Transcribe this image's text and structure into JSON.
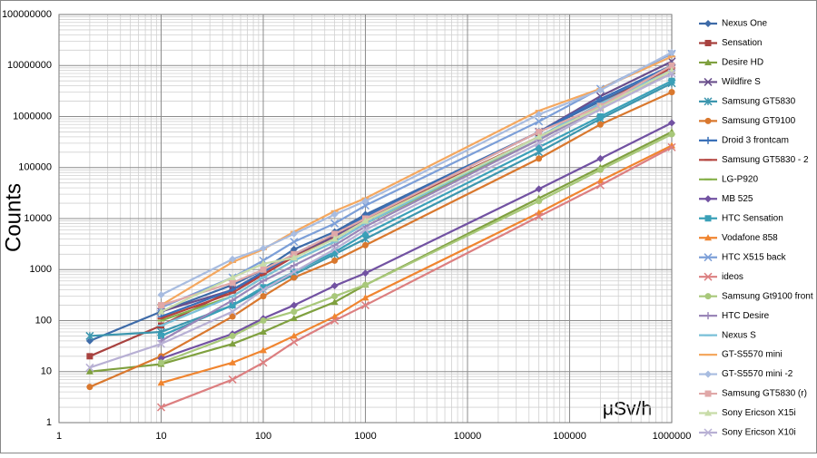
{
  "chart_data": {
    "type": "line",
    "y_label": "Counts",
    "annotation": "μSv/h",
    "x_scale": "log",
    "y_scale": "log",
    "grid": true,
    "legend": "right",
    "xlim": [
      1,
      1000000
    ],
    "ylim": [
      1,
      100000000
    ],
    "xticks": [
      1,
      10,
      100,
      1000,
      10000,
      100000,
      1000000
    ],
    "yticks": [
      1,
      10,
      100,
      1000,
      10000,
      100000,
      1000000,
      10000000,
      100000000
    ],
    "x": [
      2,
      10,
      50,
      100,
      200,
      500,
      1000,
      50000,
      200000,
      1000000
    ],
    "series": [
      {
        "name": "Nexus One",
        "color": "#3E6BA8",
        "marker": "diamond",
        "values": [
          40,
          150,
          500,
          1000,
          2500,
          5500,
          12000,
          500000,
          2000000,
          9000000
        ]
      },
      {
        "name": "Sensation",
        "color": "#A8423F",
        "marker": "square",
        "values": [
          20,
          80,
          400,
          900,
          2000,
          4500,
          10000,
          400000,
          1500000,
          8000000
        ]
      },
      {
        "name": "Desire HD",
        "color": "#7FA03F",
        "marker": "triangle",
        "values": [
          10,
          14,
          35,
          60,
          110,
          230,
          500,
          25000,
          100000,
          500000
        ]
      },
      {
        "name": "Wildfire S",
        "color": "#6A4F8C",
        "marker": "x",
        "values": [
          null,
          150,
          400,
          800,
          1800,
          4500,
          10000,
          500000,
          2500000,
          12000000
        ]
      },
      {
        "name": "Samsung GT5830",
        "color": "#3C96AE",
        "marker": "star",
        "values": [
          50,
          60,
          200,
          400,
          800,
          2000,
          4000,
          200000,
          900000,
          4500000
        ]
      },
      {
        "name": "Samsung GT9100",
        "color": "#D9782E",
        "marker": "circle",
        "values": [
          5,
          20,
          120,
          300,
          700,
          1500,
          3000,
          150000,
          700000,
          3000000
        ]
      },
      {
        "name": "Droid 3 frontcam",
        "color": "#3A70B8",
        "marker": "plus",
        "values": [
          null,
          120,
          400,
          900,
          2000,
          5000,
          11000,
          500000,
          2200000,
          10000000
        ]
      },
      {
        "name": "Samsung GT5830 - 2",
        "color": "#B4443F",
        "marker": "dash",
        "values": [
          null,
          110,
          350,
          800,
          1800,
          4000,
          9000,
          400000,
          1800000,
          9000000
        ]
      },
      {
        "name": "LG-P920",
        "color": "#86B04A",
        "marker": "dash",
        "values": [
          null,
          100,
          300,
          700,
          1500,
          3500,
          8000,
          350000,
          1500000,
          7000000
        ]
      },
      {
        "name": "MB 525",
        "color": "#7252A2",
        "marker": "diamond",
        "values": [
          null,
          18,
          55,
          110,
          200,
          480,
          850,
          38000,
          150000,
          750000
        ]
      },
      {
        "name": "HTC Sensation",
        "color": "#3AA0B8",
        "marker": "square",
        "values": [
          null,
          50,
          200,
          450,
          900,
          2200,
          5000,
          250000,
          1000000,
          5000000
        ]
      },
      {
        "name": "Vodafone 858",
        "color": "#F08530",
        "marker": "triangle",
        "values": [
          null,
          6,
          15,
          26,
          50,
          120,
          280,
          13000,
          55000,
          270000
        ]
      },
      {
        "name": "HTC X515 back",
        "color": "#7C9FD8",
        "marker": "x",
        "values": [
          null,
          180,
          700,
          1500,
          3500,
          8000,
          18000,
          800000,
          3500000,
          17000000
        ]
      },
      {
        "name": "ideos",
        "color": "#DC7F80",
        "marker": "x",
        "values": [
          null,
          2,
          7,
          15,
          38,
          100,
          200,
          11000,
          45000,
          250000
        ]
      },
      {
        "name": "Samsung Gt9100 front",
        "color": "#A8C87A",
        "marker": "circle",
        "values": [
          null,
          15,
          50,
          100,
          150,
          300,
          500,
          22000,
          90000,
          450000
        ]
      },
      {
        "name": "HTC Desire",
        "color": "#9A86B8",
        "marker": "plus",
        "values": [
          null,
          40,
          250,
          600,
          1200,
          3000,
          7000,
          350000,
          1500000,
          7000000
        ]
      },
      {
        "name": "Nexus S",
        "color": "#7AC0D8",
        "marker": "dash",
        "values": [
          null,
          80,
          300,
          700,
          1500,
          3500,
          8000,
          400000,
          1800000,
          8000000
        ]
      },
      {
        "name": "GT-S5570 mini",
        "color": "#F4A860",
        "marker": "dash",
        "values": [
          null,
          200,
          1400,
          2500,
          5500,
          14000,
          25000,
          1300000,
          3500000,
          15000000
        ]
      },
      {
        "name": "GT-S5570 mini -2",
        "color": "#A8BCE0",
        "marker": "diamond",
        "values": [
          null,
          320,
          1600,
          2600,
          5000,
          12000,
          22000,
          1100000,
          3300000,
          18000000
        ]
      },
      {
        "name": "Samsung GT5830 (r)",
        "color": "#E0A8A8",
        "marker": "square",
        "values": [
          null,
          200,
          550,
          1000,
          2000,
          5000,
          10000,
          500000,
          1600000,
          10000000
        ]
      },
      {
        "name": "Sony Ericson X15i",
        "color": "#C8DCA8",
        "marker": "triangle",
        "values": [
          null,
          150,
          700,
          1300,
          1700,
          4000,
          9000,
          400000,
          1500000,
          8000000
        ]
      },
      {
        "name": "Sony Ericson X10i",
        "color": "#B8B0D4",
        "marker": "x",
        "values": [
          12,
          35,
          150,
          400,
          900,
          2500,
          6000,
          300000,
          1400000,
          7000000
        ]
      }
    ]
  }
}
